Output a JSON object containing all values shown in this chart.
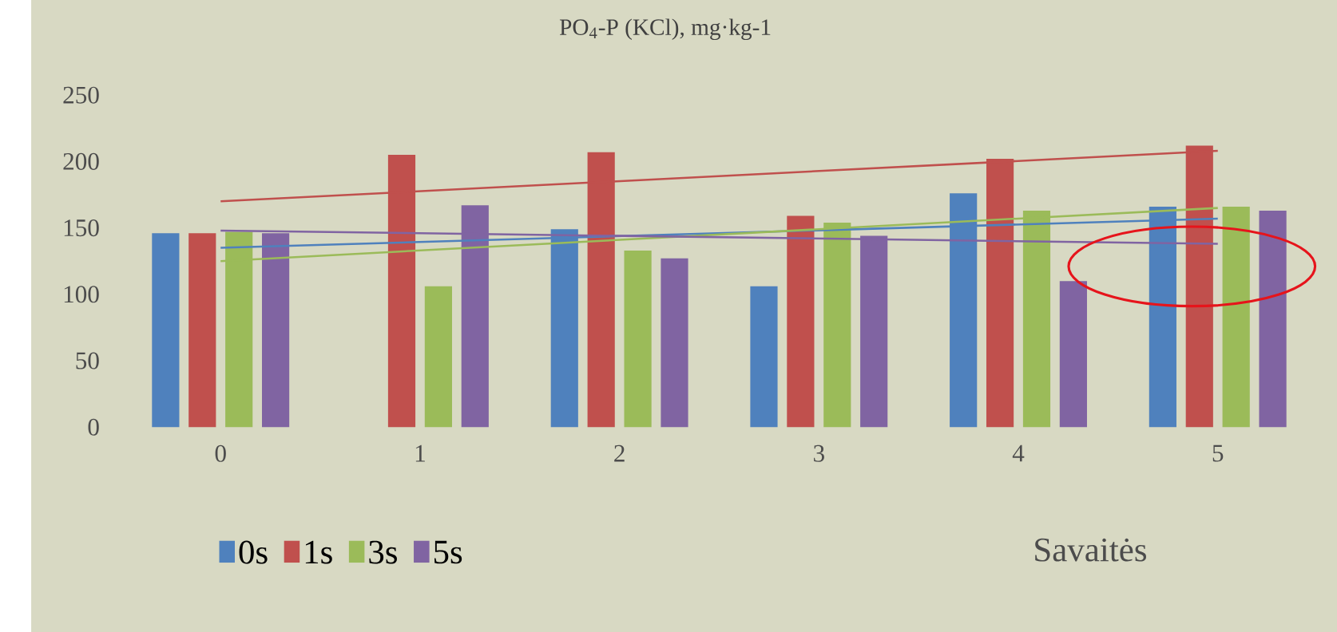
{
  "chart_data": {
    "type": "bar",
    "title": "PO$_{4}$-P (KCl), mg·kg-1",
    "xlabel": "Savaitės",
    "categories": [
      "0",
      "1",
      "2",
      "3",
      "4",
      "5"
    ],
    "ylim": [
      0,
      250
    ],
    "yticks": [
      0,
      50,
      100,
      150,
      200,
      250
    ],
    "legend": "bottom",
    "series": [
      {
        "name": "0s",
        "color": "#4f81bd",
        "values": [
          146,
          null,
          149,
          106,
          176,
          166
        ]
      },
      {
        "name": "1s",
        "color": "#c0504d",
        "values": [
          146,
          205,
          207,
          159,
          202,
          212
        ]
      },
      {
        "name": "3s",
        "color": "#9bbb59",
        "values": [
          147,
          106,
          133,
          154,
          163,
          166
        ]
      },
      {
        "name": "5s",
        "color": "#8064a2",
        "values": [
          146,
          167,
          127,
          144,
          110,
          163
        ]
      },
      {
        "type": "line",
        "color": "#4f81bd",
        "values": [
          135,
          null,
          null,
          null,
          null,
          157
        ]
      },
      {
        "type": "line",
        "color": "#c0504d",
        "values": [
          170,
          null,
          null,
          null,
          null,
          208
        ]
      },
      {
        "type": "line",
        "color": "#9bbb59",
        "values": [
          125,
          null,
          null,
          null,
          null,
          165
        ]
      },
      {
        "type": "line",
        "color": "#8064a2",
        "values": [
          148,
          null,
          null,
          null,
          null,
          138
        ]
      }
    ]
  }
}
